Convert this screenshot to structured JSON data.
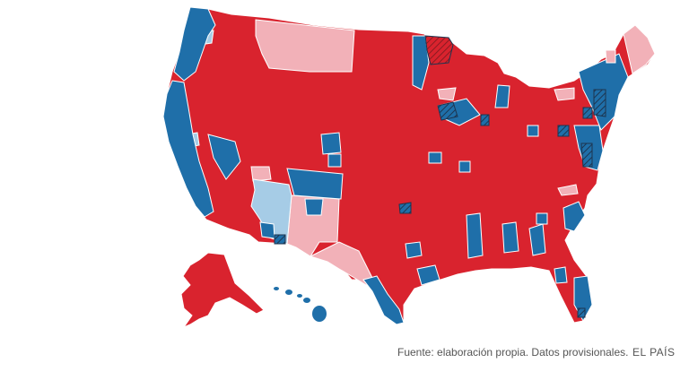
{
  "footer": {
    "source": "Fuente: elaboración propia. Datos provisionales.",
    "brand": "EL PAÍS"
  },
  "colors": {
    "rep_strong": "#d9232e",
    "rep_light": "#f2b1b8",
    "dem_strong": "#1f6fa9",
    "dem_light": "#a6cce6",
    "flip_hatch": "#1d3550",
    "border": "#ffffff"
  }
}
